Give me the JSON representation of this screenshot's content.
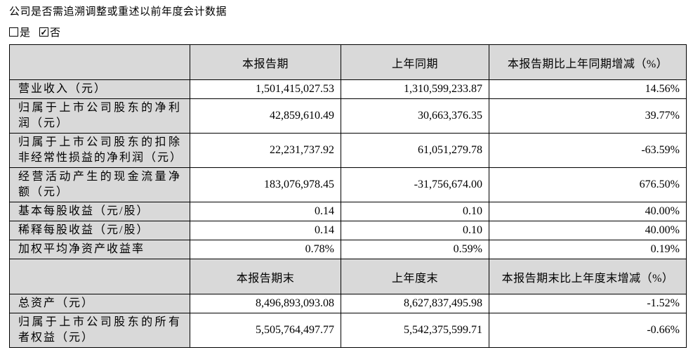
{
  "page": {
    "title": "公司是否需追溯调整或重述以前年度会计数据",
    "checkboxes": {
      "yes": {
        "label": "是",
        "checked": false
      },
      "no": {
        "label": "否",
        "checked": true,
        "check_glyph": "✓"
      }
    }
  },
  "colors": {
    "header_bg": "#d9d9d9",
    "border": "#000000",
    "text": "#000000",
    "page_bg": "#ffffff"
  },
  "table": {
    "period_section": {
      "headers": {
        "col1": "",
        "col2": "本报告期",
        "col3": "上年同期",
        "col4": "本报告期比上年同期增减（%）"
      },
      "rows": [
        {
          "label": "营业收入（元）",
          "current": "1,501,415,027.53",
          "prior": "1,310,599,233.87",
          "change": "14.56%"
        },
        {
          "label": "归属于上市公司股东的净利润（元）",
          "current": "42,859,610.49",
          "prior": "30,663,376.35",
          "change": "39.77%"
        },
        {
          "label": "归属于上市公司股东的扣除非经常性损益的净利润（元）",
          "current": "22,231,737.92",
          "prior": "61,051,279.78",
          "change": "-63.59%"
        },
        {
          "label": "经营活动产生的现金流量净额（元）",
          "current": "183,076,978.45",
          "prior": "-31,756,674.00",
          "change": "676.50%"
        },
        {
          "label": "基本每股收益（元/股）",
          "current": "0.14",
          "prior": "0.10",
          "change": "40.00%"
        },
        {
          "label": "稀释每股收益（元/股）",
          "current": "0.14",
          "prior": "0.10",
          "change": "40.00%"
        },
        {
          "label": "加权平均净资产收益率",
          "current": "0.78%",
          "prior": "0.59%",
          "change": "0.19%"
        }
      ]
    },
    "snapshot_section": {
      "headers": {
        "col1": "",
        "col2": "本报告期末",
        "col3": "上年度末",
        "col4": "本报告期末比上年度末增减（%）"
      },
      "rows": [
        {
          "label": "总资产（元）",
          "current": "8,496,893,093.08",
          "prior": "8,627,837,495.98",
          "change": "-1.52%"
        },
        {
          "label": "归属于上市公司股东的所有者权益（元）",
          "current": "5,505,764,497.77",
          "prior": "5,542,375,599.71",
          "change": "-0.66%"
        }
      ]
    }
  }
}
